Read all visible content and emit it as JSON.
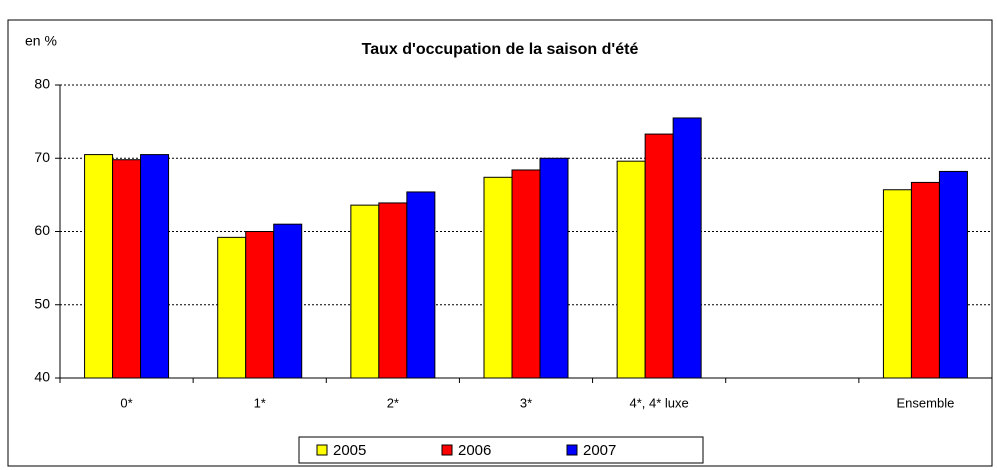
{
  "chart_data": {
    "type": "bar",
    "title": "Taux d'occupation de la saison d'été",
    "y_label": "en %",
    "categories": [
      "0*",
      "1*",
      "2*",
      "3*",
      "4*, 4* luxe",
      null,
      "Ensemble"
    ],
    "series": [
      {
        "name": "2005",
        "color": "#ffff00",
        "values": [
          70.5,
          59.2,
          63.6,
          67.4,
          69.6,
          null,
          65.7
        ]
      },
      {
        "name": "2006",
        "color": "#ff0000",
        "values": [
          69.8,
          60.0,
          63.9,
          68.4,
          73.3,
          null,
          66.7
        ]
      },
      {
        "name": "2007",
        "color": "#0000ff",
        "values": [
          70.5,
          61.0,
          65.4,
          70.0,
          75.5,
          null,
          68.2
        ]
      }
    ],
    "ylim": [
      40,
      80
    ],
    "yticks": [
      40,
      50,
      60,
      70,
      80
    ],
    "grid": true,
    "legend": "bottom"
  }
}
